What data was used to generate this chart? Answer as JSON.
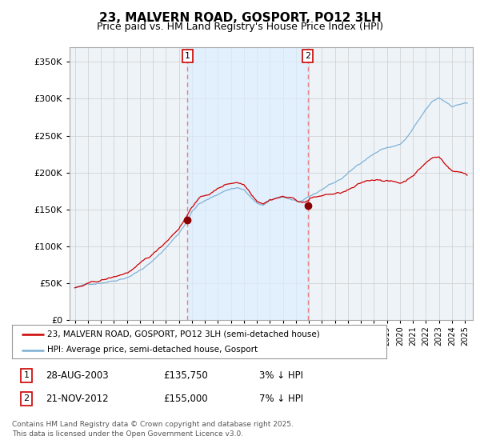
{
  "title": "23, MALVERN ROAD, GOSPORT, PO12 3LH",
  "subtitle": "Price paid vs. HM Land Registry's House Price Index (HPI)",
  "legend_line1": "23, MALVERN ROAD, GOSPORT, PO12 3LH (semi-detached house)",
  "legend_line2": "HPI: Average price, semi-detached house, Gosport",
  "footnote": "Contains HM Land Registry data © Crown copyright and database right 2025.\nThis data is licensed under the Open Government Licence v3.0.",
  "sale1_label": "1",
  "sale1_date": "28-AUG-2003",
  "sale1_price": "£135,750",
  "sale1_note": "3% ↓ HPI",
  "sale2_label": "2",
  "sale2_date": "21-NOV-2012",
  "sale2_price": "£155,000",
  "sale2_note": "7% ↓ HPI",
  "hpi_color": "#7aafd4",
  "price_color": "#cc0000",
  "marker_color": "#8b0000",
  "vline_color": "#e88080",
  "shade_color": "#ddeeff",
  "background_color": "#ffffff",
  "chart_bg_color": "#eef3f8",
  "grid_color": "#cccccc",
  "ylim": [
    0,
    370000
  ],
  "yticks": [
    0,
    50000,
    100000,
    150000,
    200000,
    250000,
    300000,
    350000
  ],
  "sale1_x": 2003.66,
  "sale1_y": 135750,
  "sale2_x": 2012.9,
  "sale2_y": 155000,
  "xlim_left": 1994.6,
  "xlim_right": 2025.6
}
